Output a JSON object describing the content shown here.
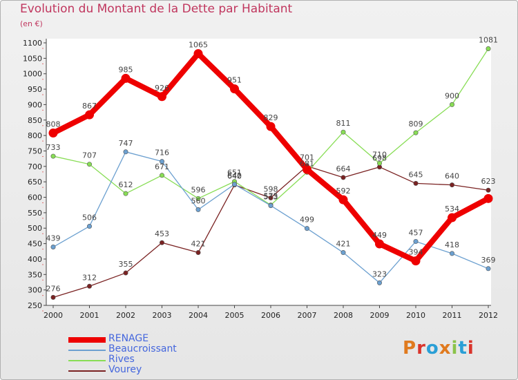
{
  "title": "Evolution du Montant de la Dette par Habitant",
  "unit": "(en €)",
  "logo": "Proxiti",
  "colors": {
    "title": "#c0365e",
    "legend_text": "#4466dd",
    "logo_letters": [
      "#e07a1e",
      "#d9342b",
      "#2a9fd6",
      "#e07a1e",
      "#8bc34a",
      "#2a9fd6",
      "#d9342b"
    ]
  },
  "chart_data": {
    "type": "line",
    "x": [
      "2000",
      "2001",
      "2002",
      "2003",
      "2004",
      "2005",
      "2006",
      "2007",
      "2008",
      "2009",
      "2010",
      "2011",
      "2012"
    ],
    "ylim": [
      250,
      1100
    ],
    "yticks": [
      250,
      300,
      350,
      400,
      450,
      500,
      550,
      600,
      650,
      700,
      750,
      800,
      850,
      900,
      950,
      1000,
      1050,
      1100
    ],
    "grid": "none",
    "legend_position": "bottom-left",
    "series": [
      {
        "name": "RENAGE",
        "color": "#ee0000",
        "values": [
          808,
          867,
          985,
          926,
          1065,
          951,
          829,
          690,
          592,
          449,
          394,
          534,
          596
        ],
        "labels": [
          "808",
          "867",
          "985",
          "926",
          "1065",
          "951",
          "829",
          "",
          "592",
          "449",
          "394",
          "534",
          ""
        ]
      },
      {
        "name": "Beaucroissant",
        "color": "#6ca0d0",
        "values": [
          439,
          506,
          747,
          716,
          560,
          642,
          573,
          499,
          421,
          323,
          457,
          418,
          369
        ],
        "labels": [
          "439",
          "506",
          "747",
          "716",
          "560",
          "642",
          "573",
          "499",
          "421",
          "323",
          "457",
          "418",
          "369"
        ]
      },
      {
        "name": "Rives",
        "color": "#88dd55",
        "values": [
          733,
          707,
          612,
          671,
          596,
          651,
          575,
          681,
          811,
          710,
          809,
          900,
          1081
        ],
        "labels": [
          "733",
          "707",
          "612",
          "671",
          "596",
          "651",
          "575",
          "681",
          "811",
          "710",
          "809",
          "900",
          "1081"
        ]
      },
      {
        "name": "Vourey",
        "color": "#7a2222",
        "values": [
          276,
          312,
          355,
          453,
          421,
          640,
          598,
          701,
          664,
          698,
          645,
          640,
          623
        ],
        "labels": [
          "276",
          "312",
          "355",
          "453",
          "421",
          "640",
          "598",
          "701",
          "664",
          "698",
          "645",
          "640",
          "623"
        ]
      }
    ]
  }
}
